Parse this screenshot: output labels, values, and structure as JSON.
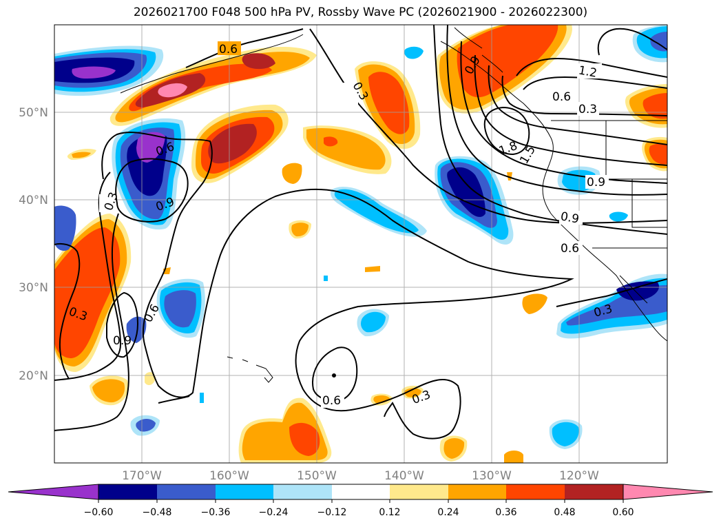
{
  "title": "2026021700 F048 500 hPa PV, Rossby Wave PC (2026021900 - 2026022300)",
  "lat_labels": [
    "50°N",
    "40°N",
    "30°N",
    "20°N"
  ],
  "lon_labels": [
    "170°W",
    "160°W",
    "150°W",
    "140°W",
    "130°W",
    "120°W"
  ],
  "contour_labels": [
    "0.6",
    "0.3",
    "0.6",
    "0.9",
    "0.3",
    "0.9",
    "0.3",
    "0.6",
    "0.9",
    "1.2",
    "0.6",
    "0.3",
    "1.8",
    "1.5",
    "0.9",
    "0.9",
    "0.6",
    "0.3",
    "0.6",
    "0.3"
  ],
  "colorbar": {
    "ticks": [
      "−0.60",
      "−0.48",
      "−0.36",
      "−0.24",
      "−0.12",
      "0.12",
      "0.24",
      "0.36",
      "0.48",
      "0.60"
    ],
    "colors": [
      "#9932cc",
      "#00008b",
      "#3a5ccc",
      "#00bfff",
      "#aee4f8",
      "#ffffff",
      "#ffe98c",
      "#ffa500",
      "#ff4500",
      "#b22222",
      "#ff88b0"
    ]
  },
  "palette": {
    "pos_light": "#ffe98c",
    "pos_orange": "#ffa500",
    "pos_red": "#ff4500",
    "pos_dark": "#b22222",
    "pos_pink": "#ff88b0",
    "neg_light": "#aee4f8",
    "neg_cyan": "#00bfff",
    "neg_blue": "#3a5ccc",
    "neg_navy": "#00008b",
    "neg_purple": "#9932cc"
  }
}
